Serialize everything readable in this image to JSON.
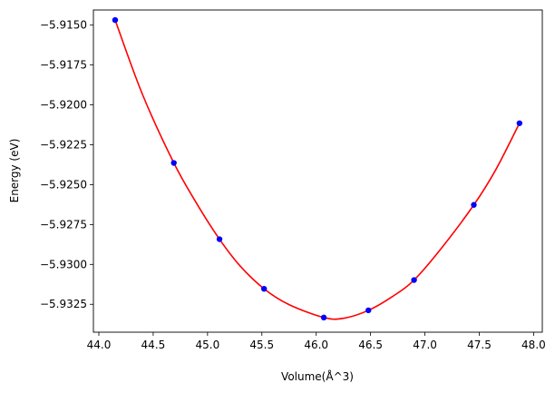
{
  "chart_data": {
    "type": "scatter",
    "xlabel": "Volume(Å^3)",
    "ylabel": "Energy (eV)",
    "xlim": [
      43.95,
      48.08
    ],
    "ylim": [
      -5.93425,
      -5.91405
    ],
    "xticks": [
      44.0,
      44.5,
      45.0,
      45.5,
      46.0,
      46.5,
      47.0,
      47.5,
      48.0
    ],
    "xtick_labels": [
      "44.0",
      "44.5",
      "45.0",
      "45.5",
      "46.0",
      "46.5",
      "47.0",
      "47.5",
      "48.0"
    ],
    "yticks": [
      -5.915,
      -5.9175,
      -5.92,
      -5.9225,
      -5.925,
      -5.9275,
      -5.93,
      -5.9325
    ],
    "ytick_labels": [
      "−5.9150",
      "−5.9175",
      "−5.9200",
      "−5.9225",
      "−5.9250",
      "−5.9275",
      "−5.9300",
      "−5.9325"
    ],
    "grid": false,
    "series": [
      {
        "kind": "points",
        "color": "#0000ff",
        "x": [
          44.15,
          44.69,
          45.11,
          45.52,
          46.07,
          46.48,
          46.9,
          47.45,
          47.87
        ],
        "y": [
          -5.91468,
          -5.92364,
          -5.92842,
          -5.93153,
          -5.93333,
          -5.93288,
          -5.93098,
          -5.92627,
          -5.92115
        ]
      },
      {
        "kind": "fit-curve",
        "color": "#ff0000",
        "x": [
          44.15,
          44.4,
          44.69,
          44.9,
          45.11,
          45.3,
          45.52,
          45.75,
          46.07,
          46.25,
          46.48,
          46.7,
          46.9,
          47.15,
          47.45,
          47.65,
          47.87
        ],
        "y": [
          -5.91468,
          -5.91932,
          -5.92364,
          -5.92618,
          -5.92842,
          -5.9301,
          -5.93153,
          -5.93252,
          -5.93333,
          -5.93338,
          -5.93288,
          -5.93202,
          -5.93098,
          -5.929,
          -5.92627,
          -5.92409,
          -5.92115
        ]
      }
    ]
  }
}
